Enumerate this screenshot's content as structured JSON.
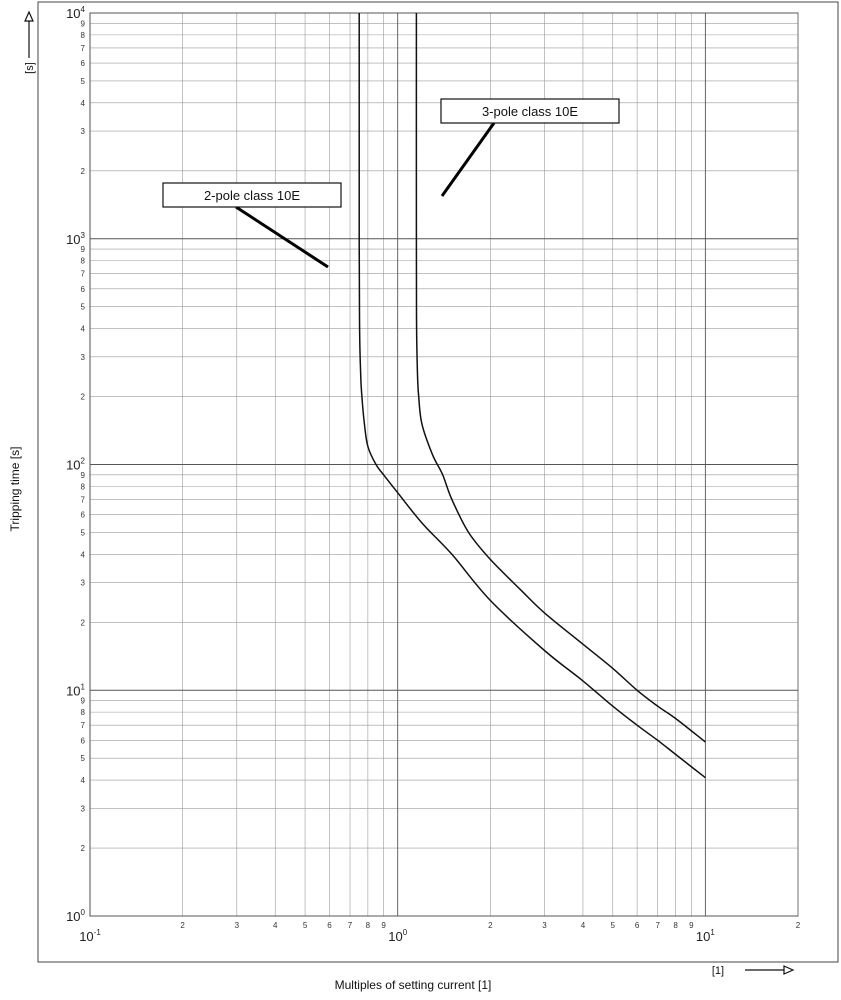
{
  "chart_data": {
    "type": "line",
    "title": "",
    "xlabel": "Multiples of setting current [1]",
    "ylabel": "Tripping time [s]",
    "x_unit": "[1]",
    "y_unit": "[s]",
    "x_scale": "log",
    "y_scale": "log",
    "xlim": [
      0.1,
      20
    ],
    "ylim": [
      1,
      10000
    ],
    "grid": true,
    "x_decades": [
      {
        "base": "10",
        "exp": "-1",
        "value": 0.1
      },
      {
        "base": "10",
        "exp": "0",
        "value": 1
      },
      {
        "base": "10",
        "exp": "1",
        "value": 10
      }
    ],
    "y_decades": [
      {
        "base": "10",
        "exp": "0",
        "value": 1
      },
      {
        "base": "10",
        "exp": "1",
        "value": 10
      },
      {
        "base": "10",
        "exp": "2",
        "value": 100
      },
      {
        "base": "10",
        "exp": "3",
        "value": 1000
      },
      {
        "base": "10",
        "exp": "4",
        "value": 10000
      }
    ],
    "x_minor_ticks": [
      {
        "label": "2",
        "value": 0.2
      },
      {
        "label": "3",
        "value": 0.3
      },
      {
        "label": "4",
        "value": 0.4
      },
      {
        "label": "5",
        "value": 0.5
      },
      {
        "label": "6",
        "value": 0.6
      },
      {
        "label": "7",
        "value": 0.7
      },
      {
        "label": "8",
        "value": 0.8
      },
      {
        "label": "9",
        "value": 0.9
      },
      {
        "label": "2",
        "value": 2
      },
      {
        "label": "3",
        "value": 3
      },
      {
        "label": "4",
        "value": 4
      },
      {
        "label": "5",
        "value": 5
      },
      {
        "label": "6",
        "value": 6
      },
      {
        "label": "7",
        "value": 7
      },
      {
        "label": "8",
        "value": 8
      },
      {
        "label": "9",
        "value": 9
      },
      {
        "label": "2",
        "value": 20
      }
    ],
    "y_minor_ticks": [
      {
        "label": "2",
        "value": 2
      },
      {
        "label": "3",
        "value": 3
      },
      {
        "label": "4",
        "value": 4
      },
      {
        "label": "5",
        "value": 5
      },
      {
        "label": "6",
        "value": 6
      },
      {
        "label": "7",
        "value": 7
      },
      {
        "label": "8",
        "value": 8
      },
      {
        "label": "9",
        "value": 9
      },
      {
        "label": "2",
        "value": 20
      },
      {
        "label": "3",
        "value": 30
      },
      {
        "label": "4",
        "value": 40
      },
      {
        "label": "5",
        "value": 50
      },
      {
        "label": "6",
        "value": 60
      },
      {
        "label": "7",
        "value": 70
      },
      {
        "label": "8",
        "value": 80
      },
      {
        "label": "9",
        "value": 90
      },
      {
        "label": "2",
        "value": 200
      },
      {
        "label": "3",
        "value": 300
      },
      {
        "label": "4",
        "value": 400
      },
      {
        "label": "5",
        "value": 500
      },
      {
        "label": "6",
        "value": 600
      },
      {
        "label": "7",
        "value": 700
      },
      {
        "label": "8",
        "value": 800
      },
      {
        "label": "9",
        "value": 900
      },
      {
        "label": "2",
        "value": 2000
      },
      {
        "label": "3",
        "value": 3000
      },
      {
        "label": "4",
        "value": 4000
      },
      {
        "label": "5",
        "value": 5000
      },
      {
        "label": "6",
        "value": 6000
      },
      {
        "label": "7",
        "value": 7000
      },
      {
        "label": "8",
        "value": 8000
      },
      {
        "label": "9",
        "value": 9000
      }
    ],
    "series": [
      {
        "name": "2-pole class 10E",
        "points": [
          [
            0.75,
            10000
          ],
          [
            0.75,
            1000
          ],
          [
            0.752,
            400
          ],
          [
            0.758,
            250
          ],
          [
            0.765,
            200
          ],
          [
            0.78,
            150
          ],
          [
            0.8,
            120
          ],
          [
            0.85,
            100
          ],
          [
            0.9,
            90
          ],
          [
            1.0,
            75
          ],
          [
            1.2,
            55
          ],
          [
            1.5,
            40
          ],
          [
            2.0,
            25
          ],
          [
            3.0,
            15
          ],
          [
            4.0,
            11
          ],
          [
            5.0,
            8.5
          ],
          [
            6.0,
            7.0
          ],
          [
            7.0,
            6.0
          ],
          [
            8.0,
            5.2
          ],
          [
            10.0,
            4.1
          ]
        ]
      },
      {
        "name": "3-pole class 10E",
        "points": [
          [
            1.15,
            10000
          ],
          [
            1.15,
            1000
          ],
          [
            1.152,
            400
          ],
          [
            1.16,
            250
          ],
          [
            1.17,
            200
          ],
          [
            1.2,
            150
          ],
          [
            1.3,
            110
          ],
          [
            1.4,
            90
          ],
          [
            1.5,
            70
          ],
          [
            1.7,
            50
          ],
          [
            2.0,
            38
          ],
          [
            2.5,
            28
          ],
          [
            3.0,
            22
          ],
          [
            4.0,
            16
          ],
          [
            5.0,
            12.5
          ],
          [
            6.0,
            10.0
          ],
          [
            7.0,
            8.5
          ],
          [
            8.0,
            7.5
          ],
          [
            10.0,
            5.9
          ]
        ]
      }
    ],
    "annotations": [
      {
        "text": "2-pole class 10E",
        "target_series": 0
      },
      {
        "text": "3-pole class 10E",
        "target_series": 1
      }
    ]
  }
}
